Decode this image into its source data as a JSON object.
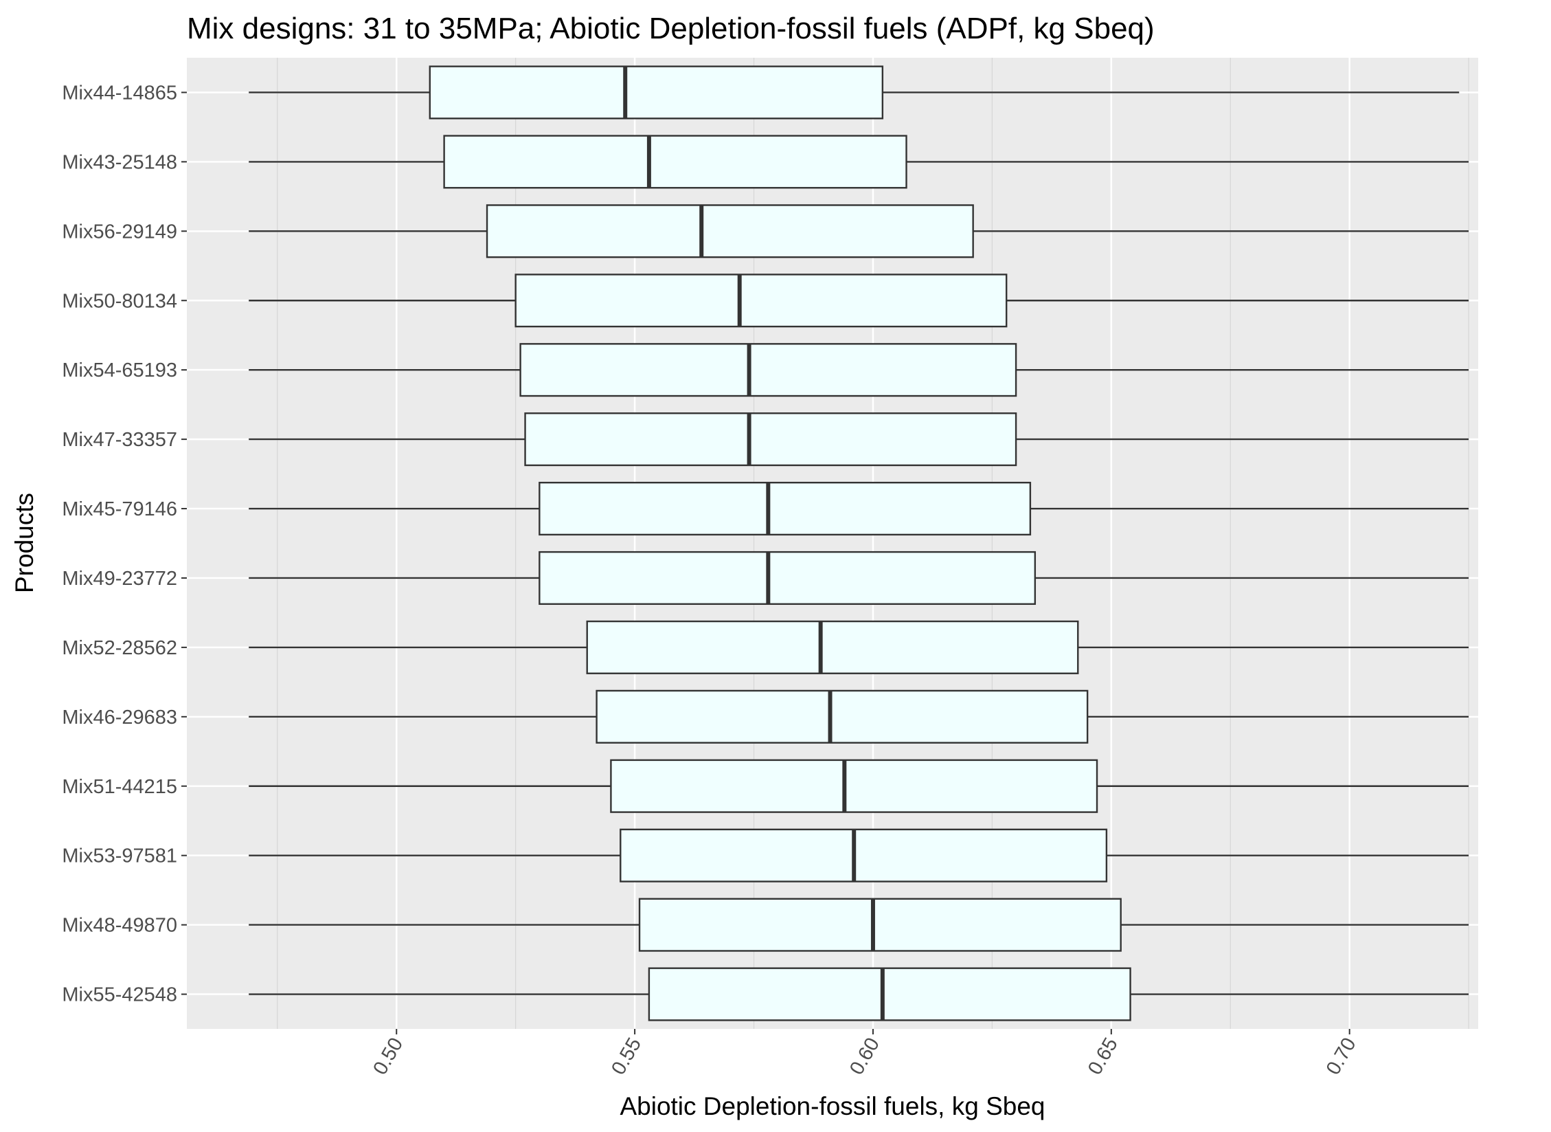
{
  "chart_data": {
    "type": "boxplot",
    "orientation": "horizontal",
    "title": "Mix designs: 31 to 35MPa; Abiotic Depletion-fossil fuels (ADPf, kg Sbeq)",
    "xlabel": "Abiotic Depletion-fossil fuels, kg Sbeq",
    "ylabel": "Products",
    "xlim": [
      0.456,
      0.727
    ],
    "x_ticks": [
      0.5,
      0.55,
      0.6,
      0.65,
      0.7
    ],
    "x_tick_labels": [
      "0.50",
      "0.55",
      "0.60",
      "0.65",
      "0.70"
    ],
    "grid": true,
    "colors": {
      "panel": "#ebebeb",
      "grid_major": "#ffffff",
      "grid_minor": "#f5f5f5",
      "box_fill": "#f0ffff",
      "box_stroke": "#333333",
      "text": "#000000",
      "tick_text": "#4d4d4d"
    },
    "categories": [
      "Mix44-14865",
      "Mix43-25148",
      "Mix56-29149",
      "Mix50-80134",
      "Mix54-65193",
      "Mix47-33357",
      "Mix45-79146",
      "Mix49-23772",
      "Mix52-28562",
      "Mix46-29683",
      "Mix51-44215",
      "Mix53-97581",
      "Mix48-49870",
      "Mix55-42548"
    ],
    "boxes": [
      {
        "min": 0.469,
        "q1": 0.507,
        "median": 0.548,
        "q3": 0.602,
        "max": 0.723
      },
      {
        "min": 0.469,
        "q1": 0.51,
        "median": 0.553,
        "q3": 0.607,
        "max": 0.725
      },
      {
        "min": 0.469,
        "q1": 0.519,
        "median": 0.564,
        "q3": 0.621,
        "max": 0.725
      },
      {
        "min": 0.469,
        "q1": 0.525,
        "median": 0.572,
        "q3": 0.628,
        "max": 0.725
      },
      {
        "min": 0.469,
        "q1": 0.526,
        "median": 0.574,
        "q3": 0.63,
        "max": 0.725
      },
      {
        "min": 0.469,
        "q1": 0.527,
        "median": 0.574,
        "q3": 0.63,
        "max": 0.725
      },
      {
        "min": 0.469,
        "q1": 0.53,
        "median": 0.578,
        "q3": 0.633,
        "max": 0.725
      },
      {
        "min": 0.469,
        "q1": 0.53,
        "median": 0.578,
        "q3": 0.634,
        "max": 0.725
      },
      {
        "min": 0.469,
        "q1": 0.54,
        "median": 0.589,
        "q3": 0.643,
        "max": 0.725
      },
      {
        "min": 0.469,
        "q1": 0.542,
        "median": 0.591,
        "q3": 0.645,
        "max": 0.725
      },
      {
        "min": 0.469,
        "q1": 0.545,
        "median": 0.594,
        "q3": 0.647,
        "max": 0.725
      },
      {
        "min": 0.469,
        "q1": 0.547,
        "median": 0.596,
        "q3": 0.649,
        "max": 0.725
      },
      {
        "min": 0.469,
        "q1": 0.551,
        "median": 0.6,
        "q3": 0.652,
        "max": 0.725
      },
      {
        "min": 0.469,
        "q1": 0.553,
        "median": 0.602,
        "q3": 0.654,
        "max": 0.725
      }
    ]
  }
}
